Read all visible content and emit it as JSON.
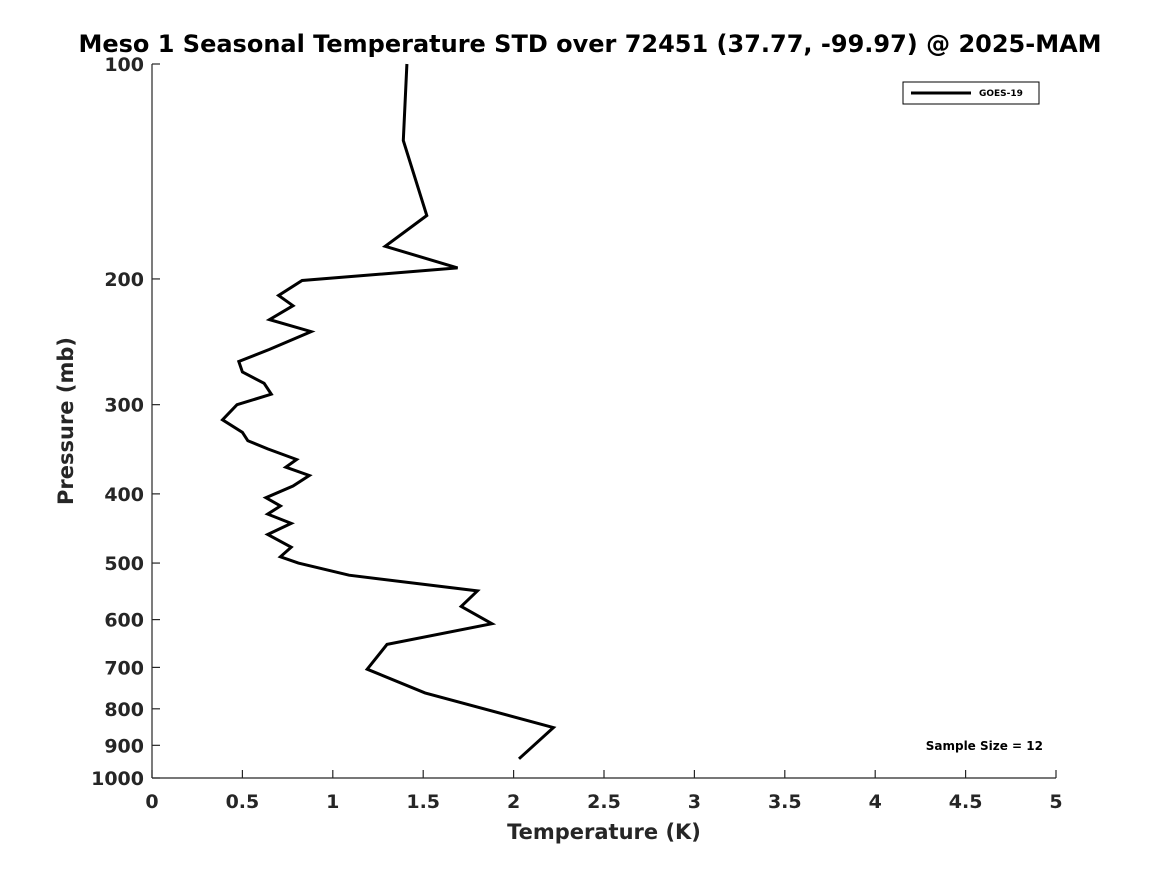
{
  "chart_data": {
    "type": "line",
    "title": "Meso 1 Seasonal Temperature STD over 72451 (37.77, -99.97) @ 2025-MAM",
    "xlabel": "Temperature (K)",
    "ylabel": "Pressure (mb)",
    "xlim": [
      0,
      5
    ],
    "ylim": [
      100,
      1000
    ],
    "y_scale": "log",
    "y_reversed": true,
    "x_ticks": [
      "0",
      "0.5",
      "1",
      "1.5",
      "2",
      "2.5",
      "3",
      "3.5",
      "4",
      "4.5",
      "5"
    ],
    "x_tick_values": [
      0,
      0.5,
      1,
      1.5,
      2,
      2.5,
      3,
      3.5,
      4,
      4.5,
      5
    ],
    "y_ticks": [
      "100",
      "200",
      "300",
      "400",
      "500",
      "600",
      "700",
      "800",
      "900",
      "1000"
    ],
    "y_tick_values": [
      100,
      200,
      300,
      400,
      500,
      600,
      700,
      800,
      900,
      1000
    ],
    "grid": false,
    "legend_position": "top-right",
    "annotation": "Sample Size = 12",
    "series": [
      {
        "name": "GOES-19",
        "color": "#000000",
        "x": [
          1.41,
          1.39,
          1.52,
          1.29,
          1.69,
          0.83,
          0.7,
          0.78,
          0.65,
          0.88,
          0.65,
          0.48,
          0.5,
          0.62,
          0.66,
          0.47,
          0.39,
          0.5,
          0.53,
          0.64,
          0.8,
          0.74,
          0.87,
          0.78,
          0.63,
          0.71,
          0.64,
          0.77,
          0.64,
          0.77,
          0.71,
          0.81,
          1.09,
          1.8,
          1.71,
          1.88,
          1.3,
          1.19,
          1.51,
          2.22,
          2.03
        ],
        "y": [
          100,
          128,
          163,
          180,
          193,
          201,
          211,
          218,
          228,
          237,
          251,
          261,
          270,
          280,
          290,
          300,
          315,
          328,
          337,
          346,
          358,
          367,
          377,
          390,
          405,
          416,
          427,
          440,
          456,
          475,
          490,
          500,
          520,
          547,
          575,
          608,
          650,
          704,
          760,
          850,
          940
        ]
      }
    ]
  }
}
